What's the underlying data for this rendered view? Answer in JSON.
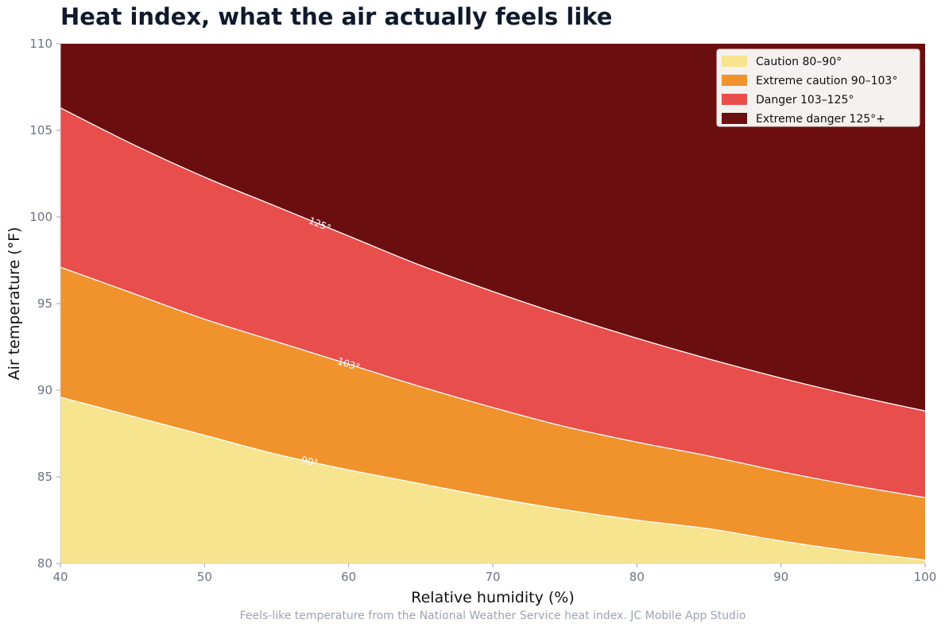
{
  "chart_data": {
    "type": "area",
    "title": "Heat index, what the air actually feels like",
    "xlabel": "Relative humidity (%)",
    "ylabel": "Air temperature (°F)",
    "xlim": [
      40,
      100
    ],
    "ylim": [
      80,
      110
    ],
    "x_ticks": [
      40,
      50,
      60,
      70,
      80,
      90,
      100
    ],
    "y_ticks": [
      80,
      85,
      90,
      95,
      100,
      105,
      110
    ],
    "grid": false,
    "legend_position": "top-right",
    "x": [
      40,
      45,
      50,
      55,
      60,
      65,
      70,
      75,
      80,
      85,
      90,
      95,
      100
    ],
    "contours": [
      {
        "label": "90°",
        "level": 90,
        "y": [
          89.6,
          88.5,
          87.4,
          86.3,
          85.4,
          84.6,
          83.8,
          83.1,
          82.5,
          82.0,
          81.3,
          80.7,
          80.2
        ]
      },
      {
        "label": "103°",
        "level": 103,
        "y": [
          97.1,
          95.6,
          94.1,
          92.8,
          91.5,
          90.2,
          89.0,
          87.9,
          87.0,
          86.2,
          85.3,
          84.5,
          83.8
        ]
      },
      {
        "label": "125°",
        "level": 125,
        "y": [
          106.3,
          104.2,
          102.3,
          100.6,
          98.9,
          97.2,
          95.7,
          94.3,
          93.0,
          91.8,
          90.7,
          89.7,
          88.8
        ]
      }
    ],
    "bands": [
      {
        "name": "Caution  80–90°",
        "color": "#f6e48e"
      },
      {
        "name": "Extreme caution  90–103°",
        "color": "#f0932c"
      },
      {
        "name": "Danger  103–125°",
        "color": "#e84e4b"
      },
      {
        "name": "Extreme danger  125°+",
        "color": "#6b0e10"
      }
    ],
    "caption": "Feels-like temperature from the National Weather Service heat index. JC Mobile App Studio"
  }
}
